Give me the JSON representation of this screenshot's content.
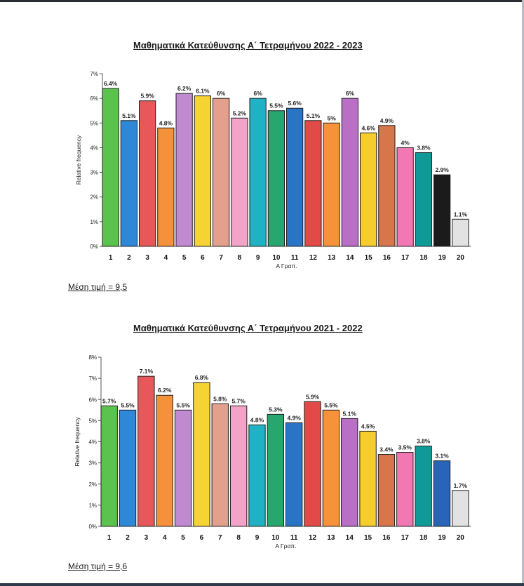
{
  "chart_data": [
    {
      "type": "bar",
      "title": "Μαθηματικά Κατεύθυνσης Α΄ Τετραμήνου 2022 - 2023",
      "xlabel": "Α Γραπ.",
      "ylabel": "Relative frequency",
      "ylim": [
        0,
        7
      ],
      "yticks": [
        "0%",
        "1%",
        "2%",
        "3%",
        "4%",
        "5%",
        "6%",
        "7%"
      ],
      "grid": false,
      "categories": [
        "1",
        "2",
        "3",
        "4",
        "5",
        "6",
        "7",
        "8",
        "9",
        "10",
        "11",
        "12",
        "13",
        "14",
        "15",
        "16",
        "17",
        "18",
        "19",
        "20"
      ],
      "values": [
        6.4,
        5.1,
        5.9,
        4.8,
        6.2,
        6.1,
        6.0,
        5.2,
        6.0,
        5.5,
        5.6,
        5.1,
        5.0,
        6.0,
        4.6,
        4.9,
        4.0,
        3.8,
        2.9,
        1.1
      ],
      "data_labels": [
        "6.4%",
        "5.1%",
        "5.9%",
        "4.8%",
        "6.2%",
        "6.1%",
        "6%",
        "5.2%",
        "6%",
        "5.5%",
        "5.6%",
        "5.1%",
        "5%",
        "6%",
        "4.6%",
        "4.9%",
        "4%",
        "3.8%",
        "2.9%",
        "1.1%"
      ],
      "colors": [
        "#5cc24e",
        "#2f87d8",
        "#e8575a",
        "#f4913a",
        "#c08ad0",
        "#f5d333",
        "#e3a08c",
        "#f3a3c8",
        "#1fb2c4",
        "#27a66d",
        "#2a74c6",
        "#e14a46",
        "#f5923a",
        "#b96fc6",
        "#f6cd2c",
        "#d7764a",
        "#f178b3",
        "#109a97",
        "#1b1b1b",
        "#e2e2e2"
      ]
    },
    {
      "type": "bar",
      "title": "Μαθηματικά Κατεύθυνσης Α΄ Τετραμήνου 2021 - 2022",
      "xlabel": "Α Γραπ.",
      "ylabel": "Relative frequency",
      "ylim": [
        0,
        8
      ],
      "yticks": [
        "0%",
        "1%",
        "2%",
        "3%",
        "4%",
        "5%",
        "6%",
        "7%",
        "8%"
      ],
      "grid": false,
      "categories": [
        "1",
        "2",
        "3",
        "4",
        "5",
        "6",
        "7",
        "8",
        "9",
        "10",
        "11",
        "12",
        "13",
        "14",
        "15",
        "16",
        "17",
        "18",
        "19",
        "20"
      ],
      "values": [
        5.7,
        5.5,
        7.1,
        6.2,
        5.5,
        6.8,
        5.8,
        5.7,
        4.8,
        5.3,
        4.9,
        5.9,
        5.5,
        5.1,
        4.5,
        3.4,
        3.5,
        3.8,
        3.1,
        1.7
      ],
      "data_labels": [
        "5.7%",
        "5.5%",
        "7.1%",
        "6.2%",
        "5.5%",
        "6.8%",
        "5.8%",
        "5.7%",
        "4.8%",
        "5.3%",
        "4.9%",
        "5.9%",
        "5.5%",
        "5.1%",
        "4.5%",
        "3.4%",
        "3.5%",
        "3.8%",
        "3.1%",
        "1.7%"
      ],
      "colors": [
        "#5cc24e",
        "#2f87d8",
        "#e8575a",
        "#f4913a",
        "#c08ad0",
        "#f5d333",
        "#e3a08c",
        "#f3a3c8",
        "#1fb2c4",
        "#27a66d",
        "#2a74c6",
        "#e14a46",
        "#f5923a",
        "#b96fc6",
        "#f6cd2c",
        "#d7764a",
        "#f178b3",
        "#109a97",
        "#2a64b8",
        "#e2e2e2"
      ]
    }
  ],
  "notes": {
    "mean1": "Μέση τιμή = 9,5",
    "mean2": "Μέση τιμή = 9,6"
  }
}
